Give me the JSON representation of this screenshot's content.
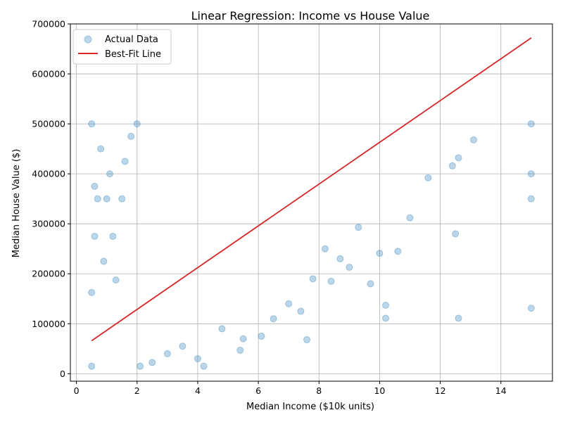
{
  "chart_data": {
    "type": "scatter",
    "title": "Linear Regression: Income vs House Value",
    "xlabel": "Median Income ($10k units)",
    "ylabel": "Median House Value ($)",
    "xlim": [
      -0.2,
      15.7
    ],
    "ylim": [
      -15000,
      700000
    ],
    "xticks": [
      0,
      2,
      4,
      6,
      8,
      10,
      12,
      14
    ],
    "yticks": [
      0,
      100000,
      200000,
      300000,
      400000,
      500000,
      600000,
      700000
    ],
    "grid": true,
    "legend_position": "top-left",
    "colors": {
      "points": "#1f77b4",
      "line": "#d62728"
    },
    "series": [
      {
        "name": "Actual Data",
        "kind": "scatter",
        "points": [
          [
            0.5,
            14999
          ],
          [
            0.5,
            162500
          ],
          [
            0.5,
            500001
          ],
          [
            0.6,
            375000
          ],
          [
            0.6,
            275000
          ],
          [
            0.7,
            350000
          ],
          [
            0.8,
            450000
          ],
          [
            0.9,
            225000
          ],
          [
            1.0,
            350000
          ],
          [
            1.1,
            400000
          ],
          [
            1.2,
            275000
          ],
          [
            1.3,
            187500
          ],
          [
            1.5,
            350000
          ],
          [
            1.6,
            425000
          ],
          [
            1.8,
            475000
          ],
          [
            2.0,
            500001
          ],
          [
            2.1,
            14999
          ],
          [
            2.5,
            22500
          ],
          [
            3.0,
            40000
          ],
          [
            3.5,
            55000
          ],
          [
            4.0,
            30000
          ],
          [
            4.2,
            14999
          ],
          [
            4.8,
            90000
          ],
          [
            5.4,
            47000
          ],
          [
            5.5,
            70000
          ],
          [
            6.1,
            75000
          ],
          [
            6.5,
            110000
          ],
          [
            7.0,
            140000
          ],
          [
            7.4,
            125000
          ],
          [
            7.6,
            68000
          ],
          [
            7.8,
            190000
          ],
          [
            8.2,
            250000
          ],
          [
            8.4,
            185000
          ],
          [
            8.7,
            230000
          ],
          [
            9.0,
            213000
          ],
          [
            9.3,
            293000
          ],
          [
            9.7,
            180000
          ],
          [
            10.0,
            241000
          ],
          [
            10.2,
            137000
          ],
          [
            10.2,
            111000
          ],
          [
            10.6,
            245000
          ],
          [
            11.0,
            312000
          ],
          [
            11.6,
            392000
          ],
          [
            12.4,
            416000
          ],
          [
            12.5,
            280000
          ],
          [
            12.6,
            432000
          ],
          [
            12.6,
            111000
          ],
          [
            13.1,
            468000
          ],
          [
            15.0,
            500001
          ],
          [
            15.0,
            400000
          ],
          [
            15.0,
            350000
          ],
          [
            15.0,
            131000
          ]
        ]
      },
      {
        "name": "Best-Fit Line",
        "kind": "line",
        "points": [
          [
            0.5,
            66000
          ],
          [
            15.0,
            672000
          ]
        ]
      }
    ]
  }
}
